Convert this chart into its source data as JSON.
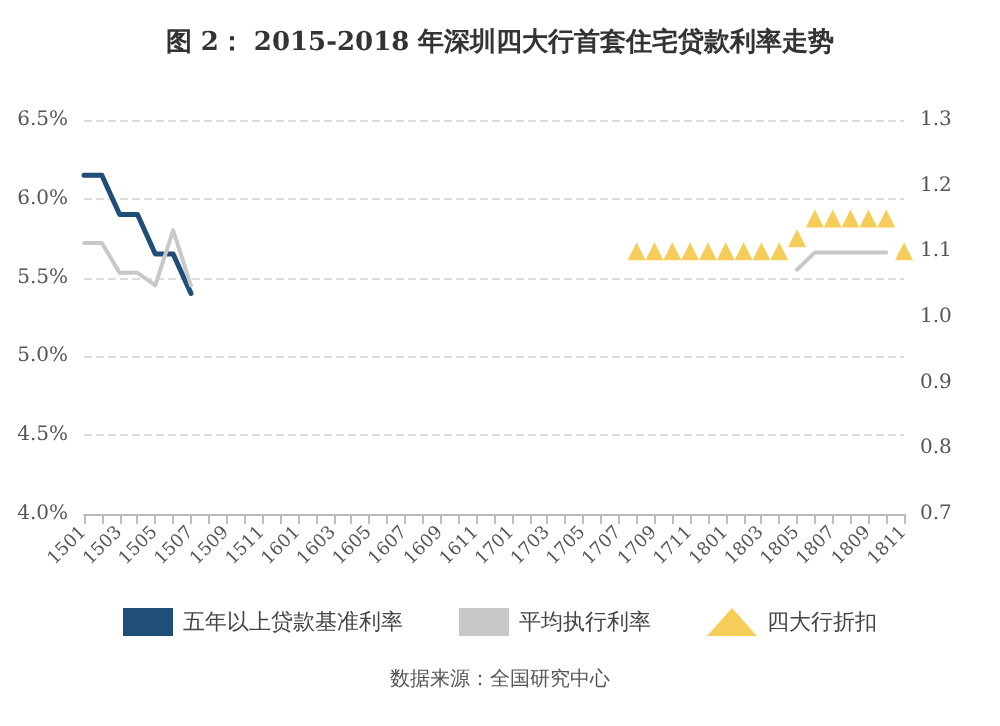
{
  "chart_data": {
    "type": "line",
    "title": "图 2： 2015-2018 年深圳四大行首套住宅贷款利率走势",
    "categories": [
      "1501",
      null,
      "1503",
      null,
      "1505",
      null,
      "1507",
      null,
      "1509",
      null,
      "1511",
      null,
      "1601",
      null,
      "1603",
      null,
      "1605",
      null,
      "1607",
      null,
      "1609",
      null,
      "1611",
      null,
      "1701",
      null,
      "1703",
      null,
      "1705",
      null,
      "1707",
      null,
      "1709",
      null,
      "1711",
      null,
      "1801",
      null,
      "1803",
      null,
      "1805",
      null,
      "1807",
      null,
      "1809",
      null,
      "1811"
    ],
    "series": [
      {
        "name": "五年以上贷款基准利率",
        "color": "#1f4e79",
        "values": [
          6.15,
          6.15,
          5.9,
          5.9,
          5.65,
          5.65,
          5.4,
          null,
          null,
          null,
          null,
          null,
          null,
          null,
          null,
          null,
          null,
          null,
          null,
          null,
          null,
          null,
          null,
          null,
          null,
          null,
          null,
          null,
          null,
          null,
          null,
          null,
          null,
          null,
          null,
          null,
          null,
          null,
          null,
          null,
          null,
          null,
          null,
          null,
          null,
          null,
          null
        ]
      },
      {
        "name": "平均执行利率",
        "color": "#c8c8c8",
        "values": [
          5.72,
          5.72,
          5.53,
          5.53,
          5.45,
          5.8,
          5.45,
          null,
          null,
          null,
          null,
          null,
          null,
          null,
          null,
          null,
          null,
          null,
          null,
          null,
          null,
          null,
          null,
          null,
          null,
          null,
          null,
          null,
          null,
          null,
          null,
          null,
          null,
          null,
          null,
          null,
          null,
          null,
          null,
          null,
          5.55,
          5.66,
          5.66,
          5.66,
          5.66,
          5.66,
          null
        ]
      },
      {
        "name": "四大行折扣",
        "color": "#f2c12e",
        "type": "scatter",
        "axis": "y2",
        "marker": "triangle",
        "values": [
          null,
          null,
          null,
          null,
          null,
          null,
          null,
          null,
          null,
          null,
          null,
          null,
          null,
          null,
          null,
          null,
          null,
          null,
          null,
          null,
          null,
          null,
          null,
          null,
          null,
          null,
          null,
          null,
          null,
          null,
          null,
          1.1,
          1.1,
          1.1,
          1.1,
          1.1,
          1.1,
          1.1,
          1.1,
          1.1,
          1.12,
          1.15,
          1.15,
          1.15,
          1.15,
          1.15,
          1.1
        ]
      }
    ],
    "ylim": [
      4.0,
      6.5
    ],
    "yticks": [
      {
        "value": 4.0,
        "label": "4.0%"
      },
      {
        "value": 4.5,
        "label": "4.5%"
      },
      {
        "value": 5.0,
        "label": "5.0%"
      },
      {
        "value": 5.5,
        "label": "5.5%"
      },
      {
        "value": 6.0,
        "label": "6.0%"
      },
      {
        "value": 6.5,
        "label": "6.5%"
      }
    ],
    "y2lim": [
      0.7,
      1.3
    ],
    "y2ticks": [
      {
        "value": 0.7,
        "label": "0.7"
      },
      {
        "value": 0.8,
        "label": "0.8"
      },
      {
        "value": 0.9,
        "label": "0.9"
      },
      {
        "value": 1.0,
        "label": "1.0"
      },
      {
        "value": 1.1,
        "label": "1.1"
      },
      {
        "value": 1.2,
        "label": "1.2"
      },
      {
        "value": 1.3,
        "label": "1.3"
      }
    ],
    "grid": "y",
    "legend": "bottom",
    "line_style": "solid",
    "marker": "none",
    "annotations": [
      "数据来源：全国研究中心"
    ]
  }
}
